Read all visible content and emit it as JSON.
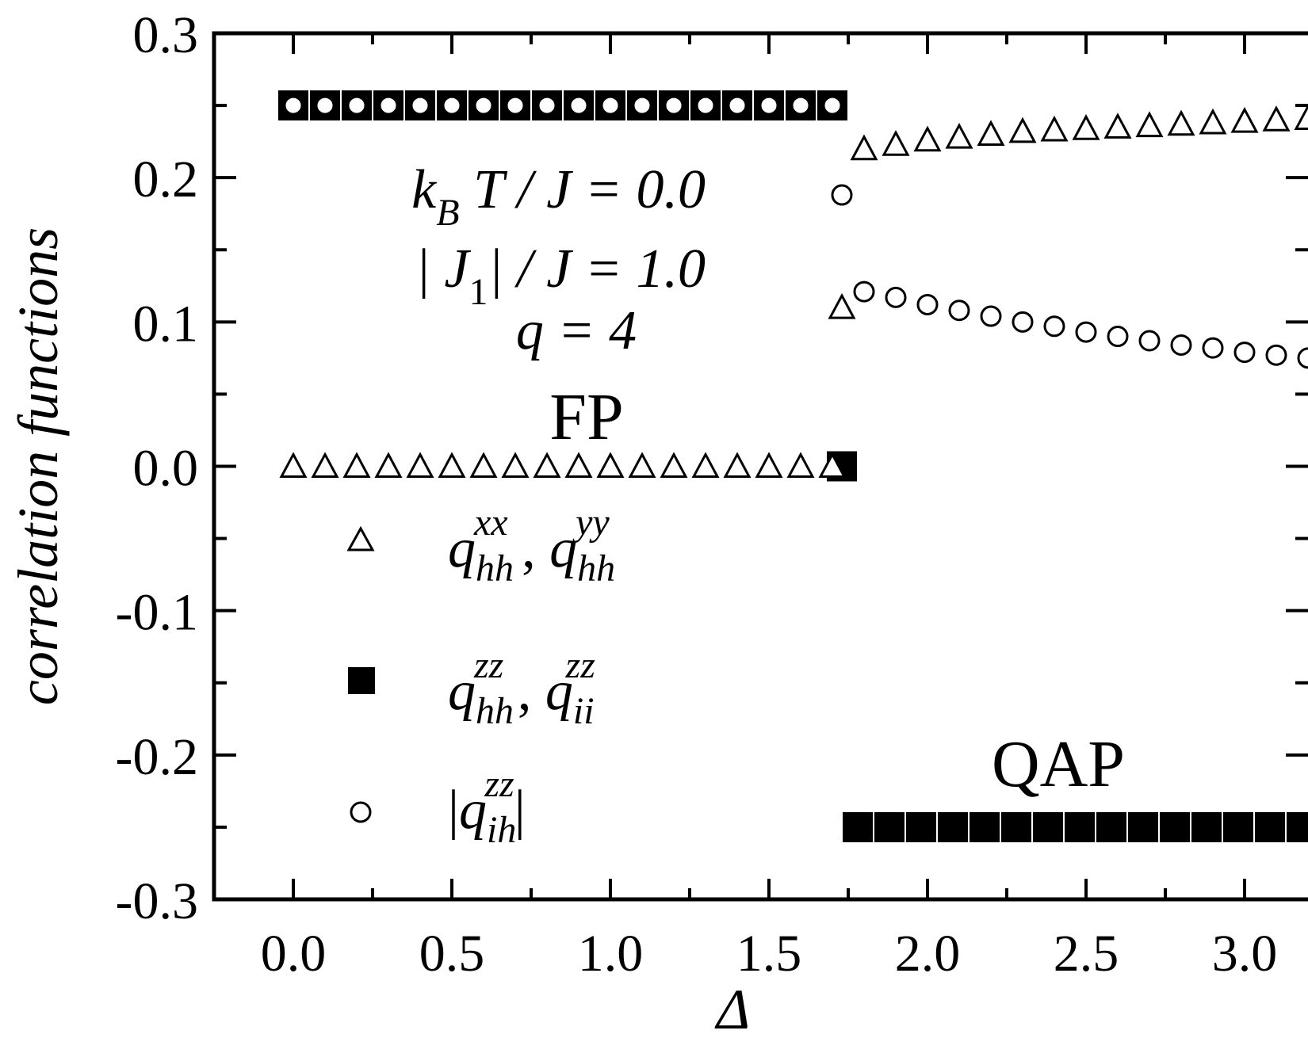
{
  "chart_data": {
    "type": "scatter",
    "xlabel": "Δ",
    "ylabel": "correlation functions",
    "xlim": [
      -0.25,
      3.2
    ],
    "ylim": [
      -0.3,
      0.3
    ],
    "x_ticks": [
      "0.0",
      "0.5",
      "1.0",
      "1.5",
      "2.0",
      "2.5",
      "3.0"
    ],
    "y_ticks": [
      "0.3",
      "0.2",
      "0.1",
      "0.0",
      "-0.1",
      "-0.2",
      "-0.3"
    ],
    "annotations": {
      "kbt_prefix": "k",
      "kbt_sub": "B",
      "kbt_rest": " T / J = 0.0",
      "j1_prefix": "| J",
      "j1_sub": "1",
      "j1_rest": "| / J = 1.0",
      "q_line": "q = 4",
      "fp": "FP",
      "qap": "QAP"
    },
    "legend": [
      {
        "marker": "open-triangle",
        "base1": "q",
        "sub1": "hh",
        "sup1": "xx",
        "sep": " , ",
        "base2": "q",
        "sub2": "hh",
        "sup2": "yy"
      },
      {
        "marker": "filled-square",
        "base1": "q",
        "sub1": "hh",
        "sup1": "zz",
        "sep": " , ",
        "base2": "q",
        "sub2": "ii",
        "sup2": "zz"
      },
      {
        "marker": "open-circle",
        "bar_left": "|",
        "base1": "q",
        "sub1": "ih",
        "sup1": "zz",
        "bar_right": "|"
      }
    ],
    "series": [
      {
        "name": "q_hh^xx , q_hh^yy",
        "marker": "open-triangle",
        "x": [
          0.0,
          0.1,
          0.2,
          0.3,
          0.4,
          0.5,
          0.6,
          0.7,
          0.8,
          0.9,
          1.0,
          1.1,
          1.2,
          1.3,
          1.4,
          1.5,
          1.6,
          1.7,
          1.73,
          1.8,
          1.9,
          2.0,
          2.1,
          2.2,
          2.3,
          2.4,
          2.5,
          2.6,
          2.7,
          2.8,
          2.9,
          3.0,
          3.1,
          3.2
        ],
        "y": [
          0.0,
          0.0,
          0.0,
          0.0,
          0.0,
          0.0,
          0.0,
          0.0,
          0.0,
          0.0,
          0.0,
          0.0,
          0.0,
          0.0,
          0.0,
          0.0,
          0.0,
          0.0,
          0.11,
          0.22,
          0.223,
          0.226,
          0.228,
          0.23,
          0.232,
          0.233,
          0.234,
          0.235,
          0.236,
          0.237,
          0.238,
          0.239,
          0.24,
          0.241
        ]
      },
      {
        "name": "q_hh^zz , q_ii^zz",
        "marker": "filled-square",
        "x": [
          0.0,
          0.1,
          0.2,
          0.3,
          0.4,
          0.5,
          0.6,
          0.7,
          0.8,
          0.9,
          1.0,
          1.1,
          1.2,
          1.3,
          1.4,
          1.5,
          1.6,
          1.7,
          1.73,
          1.78,
          1.88,
          1.98,
          2.08,
          2.18,
          2.28,
          2.38,
          2.48,
          2.58,
          2.68,
          2.78,
          2.88,
          2.98,
          3.08,
          3.18
        ],
        "y": [
          0.25,
          0.25,
          0.25,
          0.25,
          0.25,
          0.25,
          0.25,
          0.25,
          0.25,
          0.25,
          0.25,
          0.25,
          0.25,
          0.25,
          0.25,
          0.25,
          0.25,
          0.25,
          0.0,
          -0.25,
          -0.25,
          -0.25,
          -0.25,
          -0.25,
          -0.25,
          -0.25,
          -0.25,
          -0.25,
          -0.25,
          -0.25,
          -0.25,
          -0.25,
          -0.25,
          -0.25
        ]
      },
      {
        "name": "|q_ih^zz|",
        "marker": "open-circle",
        "x": [
          0.0,
          0.1,
          0.2,
          0.3,
          0.4,
          0.5,
          0.6,
          0.7,
          0.8,
          0.9,
          1.0,
          1.1,
          1.2,
          1.3,
          1.4,
          1.5,
          1.6,
          1.7,
          1.73,
          1.8,
          1.9,
          2.0,
          2.1,
          2.2,
          2.3,
          2.4,
          2.5,
          2.6,
          2.7,
          2.8,
          2.9,
          3.0,
          3.1,
          3.2
        ],
        "y": [
          0.25,
          0.25,
          0.25,
          0.25,
          0.25,
          0.25,
          0.25,
          0.25,
          0.25,
          0.25,
          0.25,
          0.25,
          0.25,
          0.25,
          0.25,
          0.25,
          0.25,
          0.25,
          0.188,
          0.121,
          0.117,
          0.112,
          0.108,
          0.104,
          0.1,
          0.097,
          0.093,
          0.09,
          0.087,
          0.084,
          0.082,
          0.079,
          0.077,
          0.075
        ]
      }
    ]
  }
}
